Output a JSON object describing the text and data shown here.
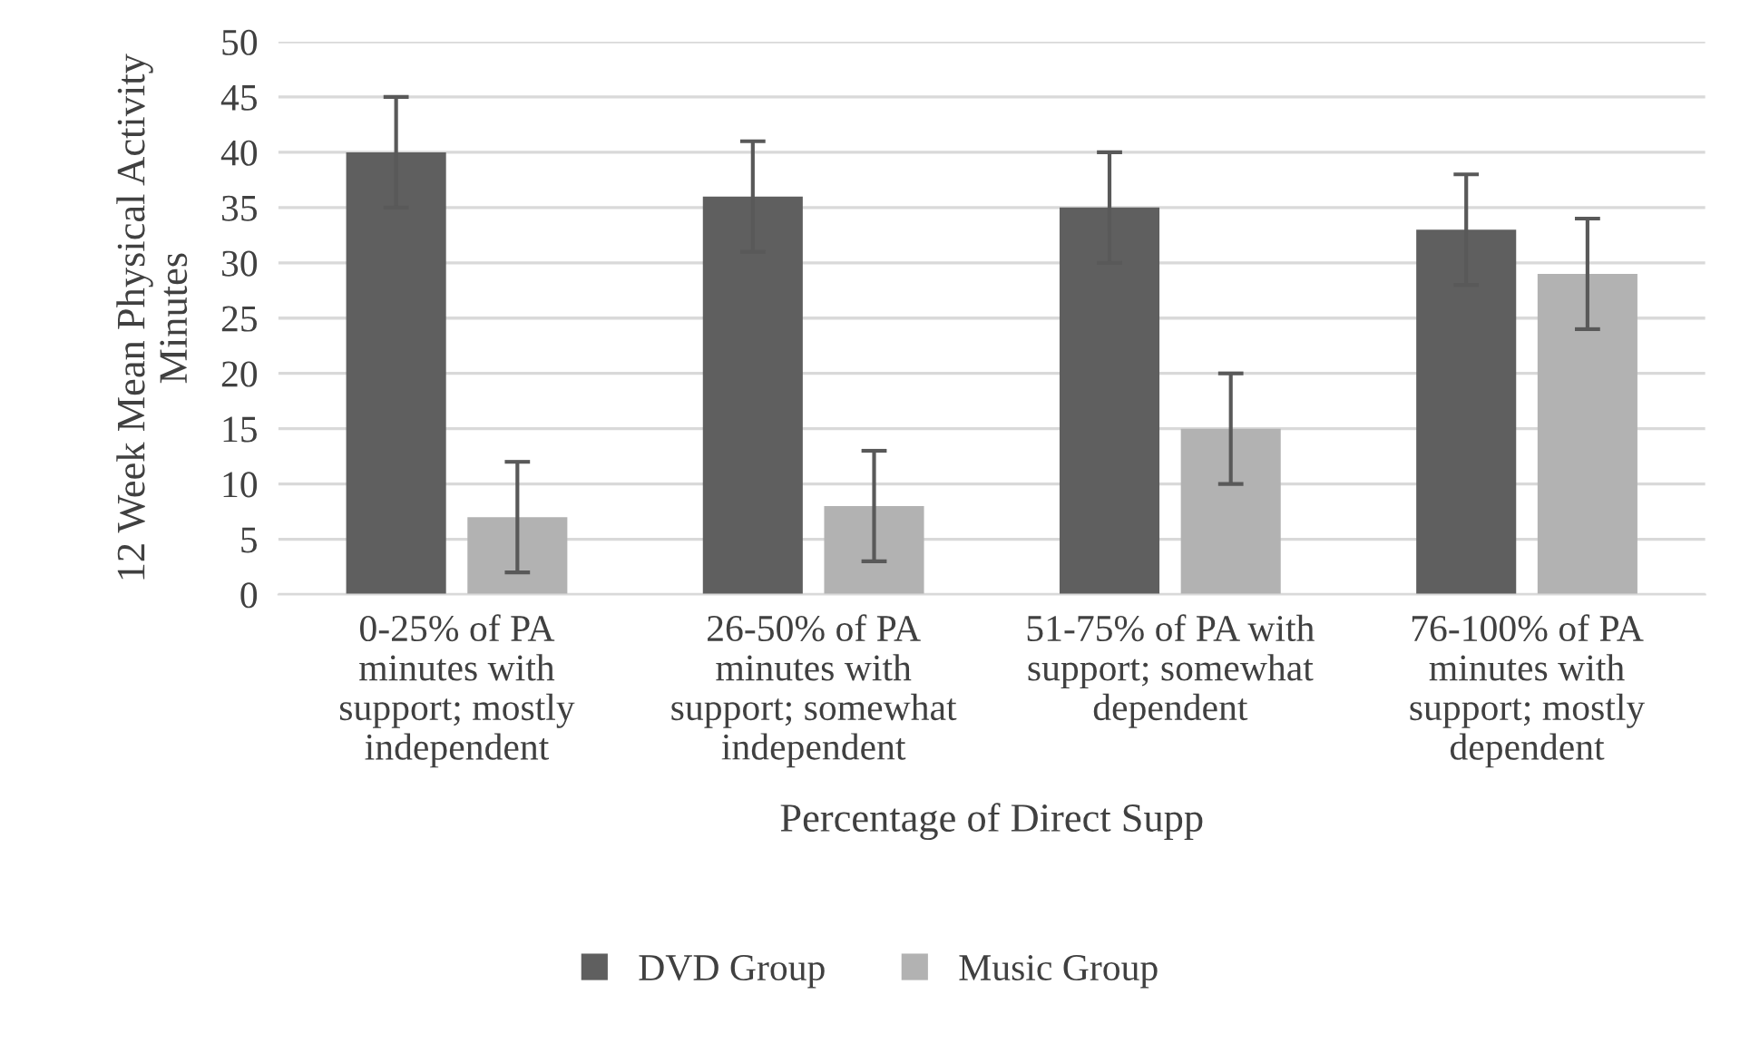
{
  "chart_data": {
    "type": "bar",
    "categories": [
      "0-25% of PA\nminutes with\nsupport; mostly\nindependent",
      "26-50% of PA\nminutes with\nsupport; somewhat\nindependent",
      "51-75% of PA with\nsupport; somewhat\ndependent",
      "76-100% of PA\nminutes with\nsupport; mostly\ndependent"
    ],
    "series": [
      {
        "name": "DVD Group",
        "color": "#5f5f5f",
        "values": [
          40,
          36,
          35,
          33
        ],
        "errors": [
          5,
          5,
          5,
          5
        ]
      },
      {
        "name": "Music Group",
        "color": "#b2b2b2",
        "values": [
          7,
          8,
          15,
          29
        ],
        "errors": [
          5,
          5,
          5,
          5
        ]
      }
    ],
    "xlabel": "Percentage of Direct Supp",
    "ylabel": "12 Week Mean Physical Activity\nMinutes",
    "ylim": [
      0,
      50
    ],
    "yticks": [
      0,
      5,
      10,
      15,
      20,
      25,
      30,
      35,
      40,
      45,
      50
    ],
    "grid": "y",
    "legend": "bottom"
  }
}
